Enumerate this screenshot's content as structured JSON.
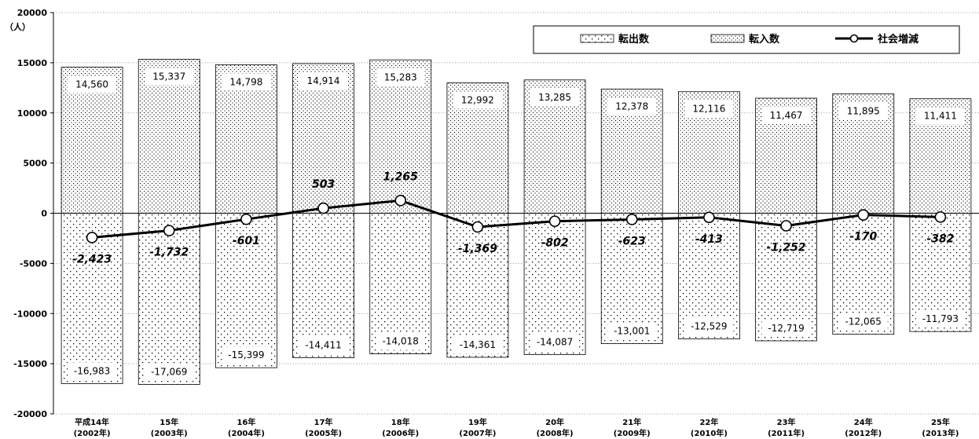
{
  "chart_data": {
    "type": "bar",
    "unit_label": "（人）",
    "ylim": [
      -20000,
      20000
    ],
    "yticks": [
      20000,
      15000,
      10000,
      5000,
      0,
      -5000,
      -10000,
      -15000,
      -20000
    ],
    "categories": [
      {
        "line1": "平成14年",
        "line2": "(2002年)"
      },
      {
        "line1": "15年",
        "line2": "(2003年)"
      },
      {
        "line1": "16年",
        "line2": "(2004年)"
      },
      {
        "line1": "17年",
        "line2": "(2005年)"
      },
      {
        "line1": "18年",
        "line2": "(2006年)"
      },
      {
        "line1": "19年",
        "line2": "(2007年)"
      },
      {
        "line1": "20年",
        "line2": "(2008年)"
      },
      {
        "line1": "21年",
        "line2": "(2009年)"
      },
      {
        "line1": "22年",
        "line2": "(2010年)"
      },
      {
        "line1": "23年",
        "line2": "(2011年)"
      },
      {
        "line1": "24年",
        "line2": "(2012年)"
      },
      {
        "line1": "25年",
        "line2": "(2013年)"
      }
    ],
    "series": [
      {
        "name": "転出数",
        "kind": "bar",
        "values": [
          -16983,
          -17069,
          -15399,
          -14411,
          -14018,
          -14361,
          -14087,
          -13001,
          -12529,
          -12719,
          -12065,
          -11793
        ],
        "labels": [
          "-16,983",
          "-17,069",
          "-15,399",
          "-14,411",
          "-14,018",
          "-14,361",
          "-14,087",
          "-13,001",
          "-12,529",
          "-12,719",
          "-12,065",
          "-11,793"
        ]
      },
      {
        "name": "転入数",
        "kind": "bar",
        "values": [
          14560,
          15337,
          14798,
          14914,
          15283,
          12992,
          13285,
          12378,
          12116,
          11467,
          11895,
          11411
        ],
        "labels": [
          "14,560",
          "15,337",
          "14,798",
          "14,914",
          "15,283",
          "12,992",
          "13,285",
          "12,378",
          "12,116",
          "11,467",
          "11,895",
          "11,411"
        ]
      },
      {
        "name": "社会増減",
        "kind": "line",
        "values": [
          -2423,
          -1732,
          -601,
          503,
          1265,
          -1369,
          -802,
          -623,
          -413,
          -1252,
          -170,
          -382
        ],
        "labels": [
          "-2,423",
          "-1,732",
          "-601",
          "503",
          "1,265",
          "-1,369",
          "-802",
          "-623",
          "-413",
          "-1,252",
          "-170",
          "-382"
        ]
      }
    ],
    "legend_position": "top-right",
    "grid": true
  }
}
